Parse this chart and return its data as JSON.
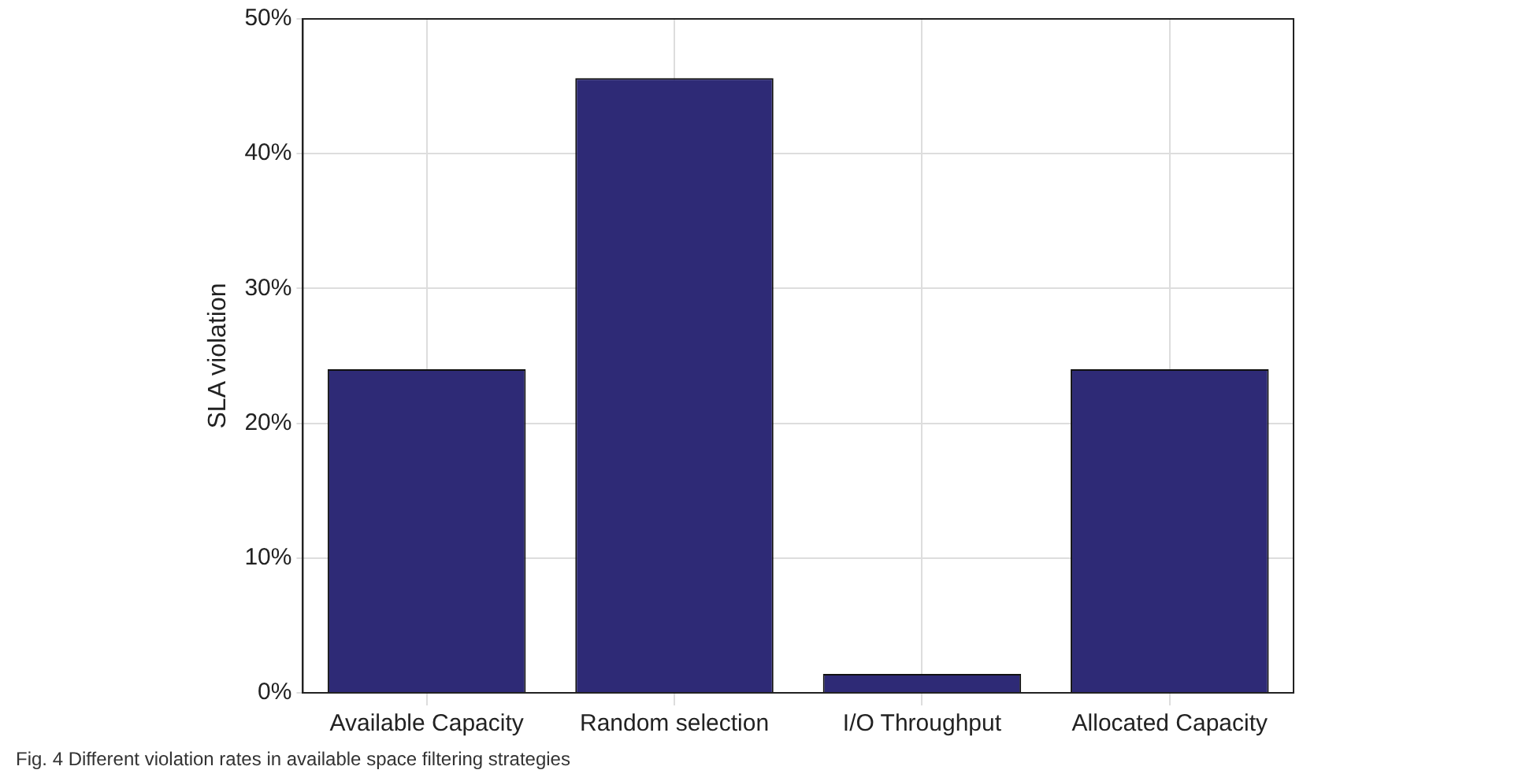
{
  "chart_data": {
    "type": "bar",
    "ylabel": "SLA violation",
    "categories": [
      "Available Capacity",
      "Random selection",
      "I/O Throughput",
      "Allocated Capacity"
    ],
    "values": [
      24,
      45.6,
      1.4,
      24
    ],
    "color": "#2e2a76",
    "ylim": [
      0,
      50
    ],
    "yticks": [
      {
        "value": 0,
        "label": "0%"
      },
      {
        "value": 10,
        "label": "10%"
      },
      {
        "value": 20,
        "label": "20%"
      },
      {
        "value": 30,
        "label": "30%"
      },
      {
        "value": 40,
        "label": "40%"
      },
      {
        "value": 50,
        "label": "50%"
      }
    ],
    "grid": true,
    "legend": false,
    "annotations": [
      "Fig. 4 Different violation rates in available space filtering strategies"
    ]
  }
}
